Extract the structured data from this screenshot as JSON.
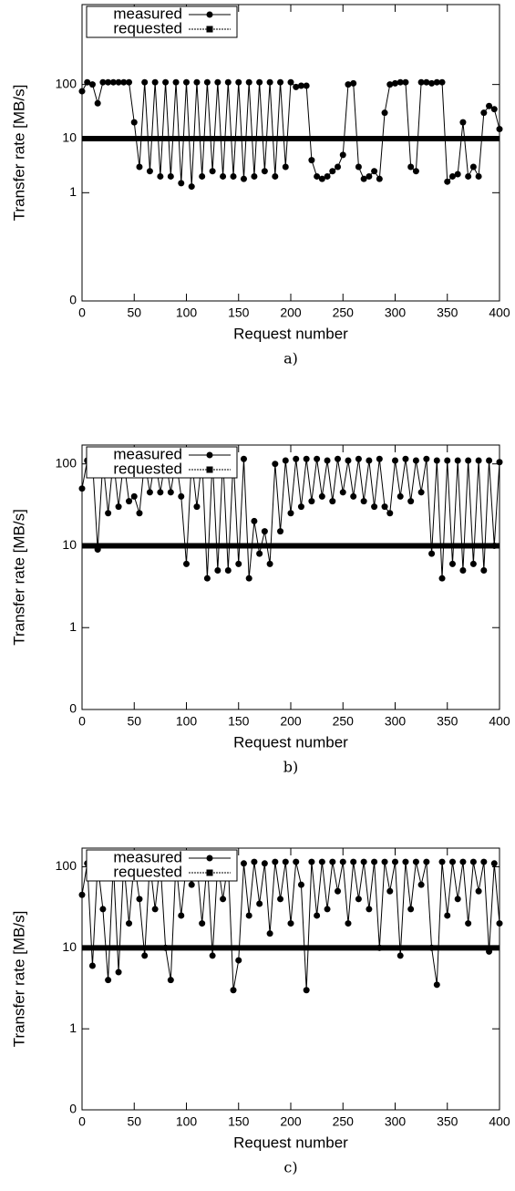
{
  "chart_data": [
    {
      "type": "line",
      "caption": "a)",
      "xlabel": "Request number",
      "ylabel": "Transfer rate [MB/s]",
      "yscale": "log",
      "xlim": [
        0,
        400
      ],
      "xticks": [
        0,
        50,
        100,
        150,
        200,
        250,
        300,
        350,
        400
      ],
      "ylim": [
        0.01,
        3000
      ],
      "yticks": [
        {
          "value": 0.01,
          "label": "0"
        },
        1,
        10,
        100
      ],
      "legend": "upper left",
      "series": [
        {
          "name": "measured",
          "color": "#000000",
          "x": [
            0,
            5,
            10,
            15,
            20,
            25,
            30,
            35,
            40,
            45,
            50,
            55,
            60,
            65,
            70,
            75,
            80,
            85,
            90,
            95,
            100,
            105,
            110,
            115,
            120,
            125,
            130,
            135,
            140,
            145,
            150,
            155,
            160,
            165,
            170,
            175,
            180,
            185,
            190,
            195,
            200,
            205,
            210,
            215,
            220,
            225,
            230,
            235,
            240,
            245,
            250,
            255,
            260,
            265,
            270,
            275,
            280,
            285,
            290,
            295,
            300,
            305,
            310,
            315,
            320,
            325,
            330,
            335,
            340,
            345,
            350,
            355,
            360,
            365,
            370,
            375,
            380,
            385,
            390,
            395,
            400
          ],
          "values": [
            75,
            110,
            100,
            45,
            110,
            110,
            110,
            110,
            110,
            110,
            20,
            3,
            110,
            2.5,
            110,
            2,
            110,
            2,
            110,
            1.5,
            110,
            1.3,
            110,
            2,
            110,
            2.5,
            110,
            2,
            110,
            2,
            110,
            1.8,
            110,
            2,
            110,
            2.5,
            110,
            2,
            110,
            3,
            110,
            90,
            95,
            95,
            4,
            2,
            1.8,
            2,
            2.5,
            3,
            5,
            100,
            105,
            3,
            1.8,
            2,
            2.5,
            1.8,
            30,
            100,
            105,
            110,
            110,
            3,
            2.5,
            110,
            110,
            105,
            110,
            110,
            1.6,
            2,
            2.2,
            20,
            2,
            3,
            2,
            30,
            40,
            35,
            15
          ]
        },
        {
          "name": "requested",
          "color": "#000000",
          "x": [
            0,
            400
          ],
          "values": [
            10,
            10
          ]
        }
      ]
    },
    {
      "type": "line",
      "caption": "b)",
      "xlabel": "Request number",
      "ylabel": "Transfer rate [MB/s]",
      "yscale": "log",
      "xlim": [
        0,
        400
      ],
      "xticks": [
        0,
        50,
        100,
        150,
        200,
        250,
        300,
        350,
        400
      ],
      "ylim": [
        0.1,
        170
      ],
      "yticks": [
        {
          "value": 0.1,
          "label": "0"
        },
        1,
        10,
        100
      ],
      "legend": "upper left",
      "series": [
        {
          "name": "measured",
          "color": "#000000",
          "x": [
            0,
            5,
            10,
            15,
            20,
            25,
            30,
            35,
            40,
            45,
            50,
            55,
            60,
            65,
            70,
            75,
            80,
            85,
            90,
            95,
            100,
            105,
            110,
            115,
            120,
            125,
            130,
            135,
            140,
            145,
            150,
            155,
            160,
            165,
            170,
            175,
            180,
            185,
            190,
            195,
            200,
            205,
            210,
            215,
            220,
            225,
            230,
            235,
            240,
            245,
            250,
            255,
            260,
            265,
            270,
            275,
            280,
            285,
            290,
            295,
            300,
            305,
            310,
            315,
            320,
            325,
            330,
            335,
            340,
            345,
            350,
            355,
            360,
            365,
            370,
            375,
            380,
            385,
            390,
            395,
            400
          ],
          "values": [
            50,
            110,
            110,
            9,
            110,
            25,
            115,
            30,
            110,
            35,
            40,
            25,
            110,
            45,
            115,
            45,
            115,
            45,
            115,
            40,
            6,
            115,
            30,
            115,
            4,
            115,
            5,
            115,
            5,
            115,
            6,
            115,
            4,
            20,
            8,
            15,
            6,
            100,
            15,
            110,
            25,
            115,
            30,
            115,
            35,
            115,
            40,
            110,
            35,
            115,
            45,
            110,
            40,
            115,
            35,
            110,
            30,
            115,
            30,
            25,
            110,
            40,
            115,
            35,
            110,
            45,
            115,
            8,
            110,
            4,
            110,
            6,
            110,
            5,
            110,
            6,
            110,
            5,
            110,
            10,
            105
          ]
        },
        {
          "name": "requested",
          "color": "#000000",
          "x": [
            0,
            400
          ],
          "values": [
            10,
            10
          ]
        }
      ]
    },
    {
      "type": "line",
      "caption": "c)",
      "xlabel": "Request number",
      "ylabel": "Transfer rate [MB/s]",
      "yscale": "log",
      "xlim": [
        0,
        400
      ],
      "xticks": [
        0,
        50,
        100,
        150,
        200,
        250,
        300,
        350,
        400
      ],
      "ylim": [
        0.1,
        170
      ],
      "yticks": [
        {
          "value": 0.1,
          "label": "0"
        },
        1,
        10,
        100
      ],
      "legend": "upper left",
      "series": [
        {
          "name": "measured",
          "color": "#000000",
          "x": [
            0,
            5,
            10,
            15,
            20,
            25,
            30,
            35,
            40,
            45,
            50,
            55,
            60,
            65,
            70,
            75,
            80,
            85,
            90,
            95,
            100,
            105,
            110,
            115,
            120,
            125,
            130,
            135,
            140,
            145,
            150,
            155,
            160,
            165,
            170,
            175,
            180,
            185,
            190,
            195,
            200,
            205,
            210,
            215,
            220,
            225,
            230,
            235,
            240,
            245,
            250,
            255,
            260,
            265,
            270,
            275,
            280,
            285,
            290,
            295,
            300,
            305,
            310,
            315,
            320,
            325,
            330,
            335,
            340,
            345,
            350,
            355,
            360,
            365,
            370,
            375,
            380,
            385,
            390,
            395,
            400
          ],
          "values": [
            45,
            110,
            6,
            110,
            30,
            4,
            110,
            5,
            115,
            20,
            115,
            40,
            8,
            115,
            30,
            115,
            10,
            4,
            115,
            25,
            110,
            60,
            115,
            20,
            115,
            8,
            110,
            40,
            115,
            3,
            7,
            110,
            25,
            115,
            35,
            110,
            15,
            115,
            40,
            115,
            20,
            115,
            60,
            3,
            115,
            25,
            115,
            30,
            115,
            50,
            115,
            20,
            115,
            40,
            115,
            30,
            115,
            10,
            115,
            50,
            115,
            8,
            115,
            30,
            115,
            60,
            115,
            10,
            3.5,
            115,
            25,
            115,
            40,
            115,
            20,
            115,
            50,
            115,
            9,
            110,
            20
          ]
        },
        {
          "name": "requested",
          "color": "#000000",
          "x": [
            0,
            400
          ],
          "values": [
            10,
            10
          ]
        }
      ]
    }
  ]
}
